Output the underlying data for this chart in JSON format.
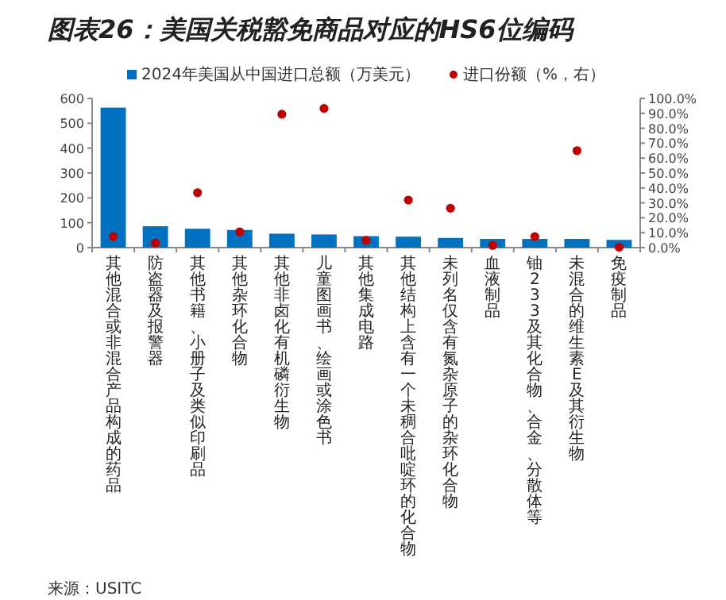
{
  "chart_data": {
    "type": "bar",
    "title": "图表26：美国关税豁免商品对应的HS6位编码",
    "categories": [
      "其他混合或非混合产品构成的药品",
      "防盗器及报警器",
      "其他书籍、小册子及类似印刷品",
      "其他杂环化合物",
      "其他非卤化有机磷衍生物",
      "儿童图画书、绘画或涂色书",
      "其他集成电路",
      "其他结构上含有一个未稠合吡啶环的化合物",
      "未列名仅含有氮杂原子的杂环化合物",
      "血液制品",
      "铀233及其化合物、合金、分散体等",
      "未混合的维生素E及其衍生物",
      "免疫制品"
    ],
    "series": [
      {
        "name": "2024年美国从中国进口总额（万美元）",
        "color": "#0070c0",
        "values": [
          563,
          86,
          76,
          71,
          56,
          53,
          46,
          44,
          39,
          35,
          35,
          35,
          31
        ]
      },
      {
        "name": "进口份额（%，右）",
        "type": "scatter",
        "axis": "y2",
        "color": "#c00000",
        "marker": "circle",
        "values": [
          7.4,
          3.2,
          36.8,
          10.6,
          89.4,
          93.3,
          4.9,
          31.9,
          26.4,
          1.5,
          7.4,
          65.0,
          0.2
        ]
      }
    ],
    "ylim": [
      0,
      600
    ],
    "yticks": [
      0,
      100,
      200,
      300,
      400,
      500,
      600
    ],
    "y2lim": [
      0,
      100
    ],
    "y2ticks": [
      {
        "value": 0,
        "label": "0.0%"
      },
      {
        "value": 10,
        "label": "10.0%"
      },
      {
        "value": 20,
        "label": "20.0%"
      },
      {
        "value": 30,
        "label": "30.0%"
      },
      {
        "value": 40,
        "label": "40.0%"
      },
      {
        "value": 50,
        "label": "50.0%"
      },
      {
        "value": 60,
        "label": "60.0%"
      },
      {
        "value": 70,
        "label": "70.0%"
      },
      {
        "value": 80,
        "label": "80.0%"
      },
      {
        "value": 90,
        "label": "90.0%"
      },
      {
        "value": 100,
        "label": "100.0%"
      }
    ],
    "legend": "top",
    "grid": false,
    "annotations": [
      "来源：USITC"
    ]
  }
}
